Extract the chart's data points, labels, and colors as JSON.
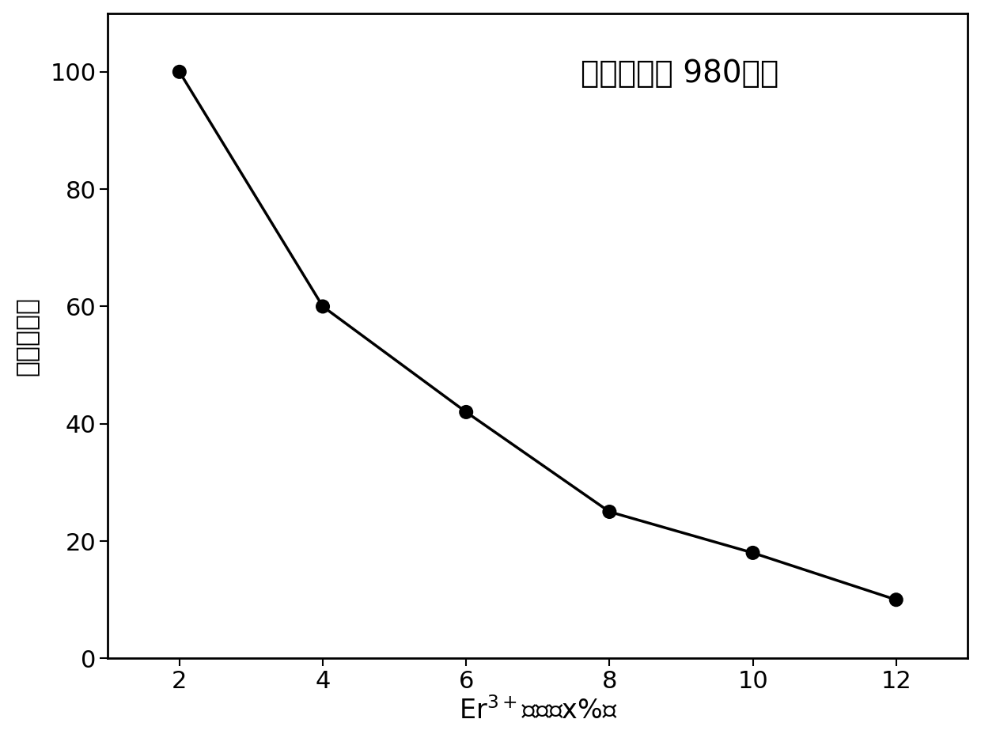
{
  "x": [
    2,
    4,
    6,
    8,
    10,
    12
  ],
  "y": [
    100,
    60,
    42,
    25,
    18,
    10
  ],
  "ylabel": "总发光强度",
  "annotation": "激发波长： 980纳米",
  "xlim": [
    1,
    13
  ],
  "ylim": [
    0,
    110
  ],
  "xticks": [
    2,
    4,
    6,
    8,
    10,
    12
  ],
  "yticks": [
    0,
    20,
    40,
    60,
    80,
    100
  ],
  "line_color": "#000000",
  "marker_color": "#000000",
  "marker_size": 13,
  "line_width": 2.5,
  "background_color": "#ffffff",
  "xlabel_fontsize": 24,
  "ylabel_fontsize": 24,
  "tick_fontsize": 22,
  "annotation_fontsize": 28
}
